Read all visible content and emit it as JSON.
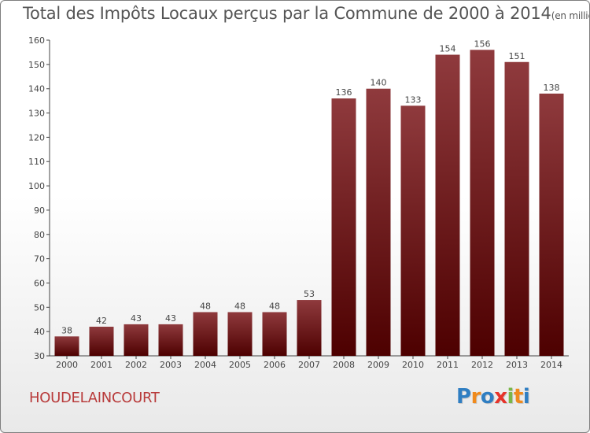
{
  "chart_data": {
    "type": "bar",
    "title": "Total des Impôts Locaux perçus par la Commune de 2000 à 2014",
    "unit_label": "(en milliers d'€)",
    "xlabel": "",
    "ylabel": "",
    "ylim": [
      30,
      160
    ],
    "y_ticks": [
      30,
      40,
      50,
      60,
      70,
      80,
      90,
      100,
      110,
      120,
      130,
      140,
      150,
      160
    ],
    "categories": [
      "2000",
      "2001",
      "2002",
      "2003",
      "2004",
      "2005",
      "2006",
      "2007",
      "2008",
      "2009",
      "2010",
      "2011",
      "2012",
      "2013",
      "2014"
    ],
    "values": [
      38,
      42,
      43,
      43,
      48,
      48,
      48,
      53,
      136,
      140,
      133,
      154,
      156,
      151,
      138
    ],
    "grid": false,
    "legend": "none"
  },
  "commune_name": "HOUDELAINCOURT",
  "logo": {
    "letters": [
      "P",
      "r",
      "o",
      "x",
      "i",
      "t",
      "i"
    ],
    "colors": [
      "#2f7ec2",
      "#f08a1c",
      "#2f7ec2",
      "#e6332a",
      "#7ab648",
      "#f08a1c",
      "#2f7ec2"
    ]
  },
  "colors": {
    "bar_top": "#8f3a3d",
    "bar_bottom": "#4d0000",
    "axis": "#444444",
    "text": "#444444"
  }
}
